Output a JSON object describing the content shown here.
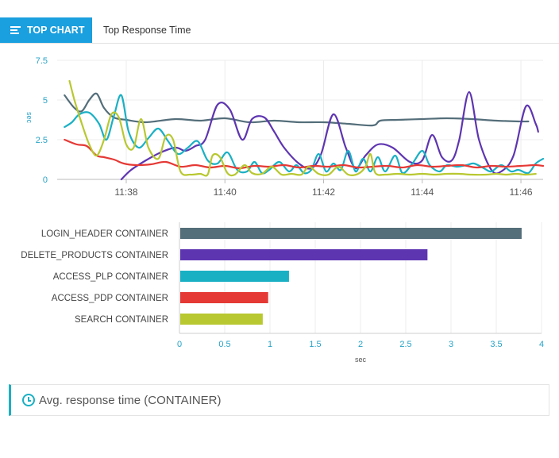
{
  "tabs": {
    "active_label": "TOP CHART",
    "title": "Top Response Time"
  },
  "footer": {
    "label": "Avg. response time (CONTAINER)"
  },
  "colors": {
    "accent": "#1a9fdf",
    "axis_text": "#27a3c7"
  },
  "chart_data": [
    {
      "type": "line",
      "ylabel": "sec",
      "ylim": [
        0,
        7.5
      ],
      "yticks": [
        "0",
        "2.5",
        "5",
        "7.5"
      ],
      "xtick_labels": [
        "11:38",
        "11:40",
        "11:42",
        "11:44",
        "11:46"
      ],
      "xtick_minutes": [
        38,
        40,
        42,
        44,
        46
      ],
      "xlim": [
        36.6,
        46.45
      ],
      "grid": true,
      "series": [
        {
          "color": "#546e7a",
          "points": [
            [
              36.75,
              5.3
            ],
            [
              36.95,
              4.5
            ],
            [
              37.1,
              4.3
            ],
            [
              37.25,
              5.0
            ],
            [
              37.4,
              5.4
            ],
            [
              37.55,
              4.5
            ],
            [
              37.75,
              3.9
            ],
            [
              38.0,
              3.75
            ],
            [
              38.4,
              3.6
            ],
            [
              39.0,
              3.8
            ],
            [
              39.5,
              3.7
            ],
            [
              40.0,
              3.85
            ],
            [
              40.5,
              3.6
            ],
            [
              41.0,
              3.7
            ],
            [
              41.5,
              3.6
            ],
            [
              42.0,
              3.6
            ],
            [
              42.5,
              3.5
            ],
            [
              43.0,
              3.4
            ],
            [
              43.15,
              3.7
            ],
            [
              43.5,
              3.75
            ],
            [
              44.0,
              3.8
            ],
            [
              44.5,
              3.85
            ],
            [
              45.0,
              3.8
            ],
            [
              45.5,
              3.7
            ],
            [
              46.0,
              3.65
            ],
            [
              46.15,
              3.65
            ]
          ]
        },
        {
          "color": "#5e35b1",
          "points": [
            [
              37.9,
              0.0
            ],
            [
              38.1,
              0.6
            ],
            [
              38.4,
              1.2
            ],
            [
              38.7,
              1.7
            ],
            [
              39.0,
              2.0
            ],
            [
              39.2,
              1.8
            ],
            [
              39.4,
              2.1
            ],
            [
              39.6,
              2.5
            ],
            [
              39.85,
              4.7
            ],
            [
              40.1,
              4.4
            ],
            [
              40.35,
              2.5
            ],
            [
              40.55,
              3.8
            ],
            [
              40.8,
              3.9
            ],
            [
              41.0,
              3.0
            ],
            [
              41.2,
              2.0
            ],
            [
              41.5,
              1.0
            ],
            [
              41.75,
              0.7
            ],
            [
              41.95,
              1.6
            ],
            [
              42.2,
              4.1
            ],
            [
              42.45,
              2.0
            ],
            [
              42.65,
              0.7
            ],
            [
              42.85,
              1.5
            ],
            [
              43.1,
              2.2
            ],
            [
              43.4,
              2.0
            ],
            [
              43.75,
              1.1
            ],
            [
              44.0,
              1.2
            ],
            [
              44.2,
              2.8
            ],
            [
              44.4,
              1.4
            ],
            [
              44.6,
              1.2
            ],
            [
              44.75,
              2.5
            ],
            [
              44.95,
              5.5
            ],
            [
              45.15,
              2.5
            ],
            [
              45.4,
              0.6
            ],
            [
              45.6,
              0.5
            ],
            [
              45.85,
              1.5
            ],
            [
              46.1,
              4.6
            ],
            [
              46.3,
              3.5
            ],
            [
              46.35,
              3.0
            ]
          ]
        },
        {
          "color": "#1ab0c4",
          "points": [
            [
              36.75,
              3.3
            ],
            [
              36.9,
              3.6
            ],
            [
              37.05,
              4.1
            ],
            [
              37.25,
              4.2
            ],
            [
              37.45,
              3.5
            ],
            [
              37.6,
              2.5
            ],
            [
              37.75,
              4.0
            ],
            [
              37.9,
              5.3
            ],
            [
              38.05,
              3.0
            ],
            [
              38.25,
              2.0
            ],
            [
              38.45,
              2.6
            ],
            [
              38.65,
              3.2
            ],
            [
              38.85,
              2.4
            ],
            [
              39.05,
              1.6
            ],
            [
              39.25,
              2.0
            ],
            [
              39.45,
              2.4
            ],
            [
              39.65,
              1.2
            ],
            [
              39.85,
              1.0
            ],
            [
              40.05,
              1.7
            ],
            [
              40.25,
              0.6
            ],
            [
              40.45,
              0.5
            ],
            [
              40.6,
              1.1
            ],
            [
              40.75,
              0.4
            ],
            [
              40.9,
              0.6
            ],
            [
              41.1,
              1.1
            ],
            [
              41.3,
              0.5
            ],
            [
              41.45,
              0.9
            ],
            [
              41.6,
              0.4
            ],
            [
              41.75,
              0.6
            ],
            [
              41.9,
              1.6
            ],
            [
              42.05,
              0.5
            ],
            [
              42.2,
              1.0
            ],
            [
              42.35,
              0.6
            ],
            [
              42.5,
              1.8
            ],
            [
              42.65,
              0.5
            ],
            [
              42.8,
              1.3
            ],
            [
              42.95,
              0.5
            ],
            [
              43.1,
              1.4
            ],
            [
              43.25,
              0.5
            ],
            [
              43.45,
              1.5
            ],
            [
              43.6,
              0.4
            ],
            [
              43.8,
              1.0
            ],
            [
              44.0,
              1.8
            ],
            [
              44.15,
              0.9
            ],
            [
              44.35,
              0.5
            ],
            [
              44.5,
              0.9
            ],
            [
              44.7,
              0.8
            ],
            [
              44.9,
              0.9
            ],
            [
              45.05,
              1.0
            ],
            [
              45.25,
              0.7
            ],
            [
              45.4,
              0.5
            ],
            [
              45.6,
              0.9
            ],
            [
              45.8,
              0.5
            ],
            [
              45.95,
              0.6
            ],
            [
              46.15,
              0.4
            ],
            [
              46.3,
              1.0
            ],
            [
              46.45,
              1.3
            ]
          ]
        },
        {
          "color": "#e53935",
          "points": [
            [
              36.75,
              2.5
            ],
            [
              37.0,
              2.2
            ],
            [
              37.2,
              2.1
            ],
            [
              37.4,
              1.5
            ],
            [
              37.55,
              1.4
            ],
            [
              37.75,
              1.25
            ],
            [
              37.95,
              1.0
            ],
            [
              38.2,
              0.9
            ],
            [
              38.5,
              0.95
            ],
            [
              38.8,
              1.1
            ],
            [
              39.1,
              0.8
            ],
            [
              39.4,
              0.9
            ],
            [
              39.7,
              0.75
            ],
            [
              40.0,
              0.85
            ],
            [
              40.3,
              0.7
            ],
            [
              40.6,
              0.85
            ],
            [
              40.9,
              0.8
            ],
            [
              41.2,
              0.9
            ],
            [
              41.5,
              0.75
            ],
            [
              41.8,
              0.85
            ],
            [
              42.1,
              0.8
            ],
            [
              42.4,
              0.9
            ],
            [
              42.7,
              0.75
            ],
            [
              43.0,
              0.8
            ],
            [
              43.3,
              0.85
            ],
            [
              43.6,
              0.75
            ],
            [
              43.9,
              0.9
            ],
            [
              44.2,
              0.8
            ],
            [
              44.5,
              0.85
            ],
            [
              44.8,
              0.9
            ],
            [
              45.1,
              0.75
            ],
            [
              45.4,
              0.85
            ],
            [
              45.7,
              0.8
            ],
            [
              46.0,
              0.85
            ],
            [
              46.3,
              0.9
            ],
            [
              46.45,
              0.85
            ]
          ]
        },
        {
          "color": "#b8c830",
          "points": [
            [
              36.85,
              6.2
            ],
            [
              36.95,
              5.0
            ],
            [
              37.1,
              3.5
            ],
            [
              37.25,
              2.2
            ],
            [
              37.4,
              1.5
            ],
            [
              37.55,
              2.5
            ],
            [
              37.7,
              4.1
            ],
            [
              37.85,
              3.9
            ],
            [
              38.0,
              2.2
            ],
            [
              38.15,
              2.0
            ],
            [
              38.3,
              3.8
            ],
            [
              38.45,
              2.0
            ],
            [
              38.65,
              1.3
            ],
            [
              38.8,
              2.7
            ],
            [
              38.95,
              2.5
            ],
            [
              39.1,
              0.5
            ],
            [
              39.3,
              0.3
            ],
            [
              39.5,
              0.35
            ],
            [
              39.65,
              0.3
            ],
            [
              39.75,
              1.5
            ],
            [
              39.9,
              1.4
            ],
            [
              40.05,
              0.4
            ],
            [
              40.2,
              0.3
            ],
            [
              40.4,
              0.9
            ],
            [
              40.55,
              0.4
            ],
            [
              40.75,
              0.35
            ],
            [
              40.95,
              0.8
            ],
            [
              41.15,
              0.3
            ],
            [
              41.35,
              0.35
            ],
            [
              41.55,
              0.3
            ],
            [
              41.7,
              0.8
            ],
            [
              41.9,
              0.35
            ],
            [
              42.1,
              0.3
            ],
            [
              42.3,
              0.8
            ],
            [
              42.5,
              0.3
            ],
            [
              42.7,
              0.35
            ],
            [
              42.85,
              0.8
            ],
            [
              42.95,
              1.6
            ],
            [
              43.05,
              0.4
            ],
            [
              43.25,
              0.3
            ],
            [
              43.5,
              0.35
            ],
            [
              43.75,
              0.3
            ],
            [
              44.0,
              0.35
            ],
            [
              44.25,
              0.3
            ],
            [
              44.5,
              0.35
            ],
            [
              44.75,
              0.35
            ],
            [
              45.0,
              0.3
            ],
            [
              45.3,
              0.3
            ],
            [
              45.5,
              0.35
            ],
            [
              45.7,
              0.3
            ],
            [
              45.9,
              0.35
            ],
            [
              46.1,
              0.3
            ],
            [
              46.3,
              0.35
            ]
          ]
        }
      ]
    },
    {
      "type": "bar",
      "orientation": "horizontal",
      "xlabel": "sec",
      "xlim": [
        0,
        4
      ],
      "xticks": [
        "0",
        "0.5",
        "1",
        "1.5",
        "2",
        "2.5",
        "3",
        "3.5",
        "4"
      ],
      "grid": true,
      "categories": [
        "LOGIN_HEADER CONTAINER",
        "DELETE_PRODUCTS CONTAINER",
        "ACCESS_PLP CONTAINER",
        "ACCESS_PDP CONTAINER",
        "SEARCH CONTAINER"
      ],
      "values": [
        3.78,
        2.74,
        1.21,
        0.98,
        0.92
      ],
      "colors": [
        "#546e7a",
        "#5e35b1",
        "#1ab0c4",
        "#e53935",
        "#b8c830"
      ]
    }
  ]
}
